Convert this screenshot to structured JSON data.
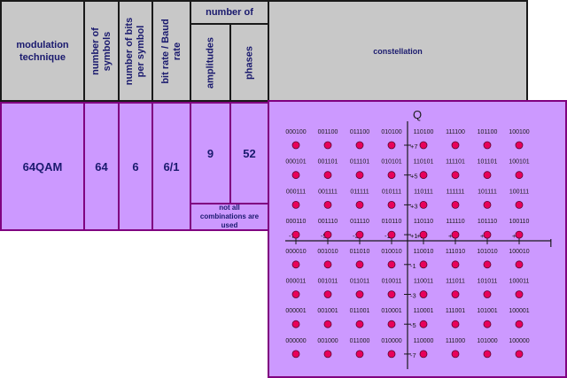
{
  "header": {
    "modulation_technique": "modulation technique",
    "number_of_symbols": "number of symbols",
    "number_of_bits_per_symbol": "number of bits per symbol",
    "bit_rate_baud_rate": "bit rate / Baud rate",
    "number_of": "number of",
    "amplitudes": "amplitudes",
    "phases": "phases",
    "constellation": "constellation"
  },
  "row": {
    "modulation_technique": "64QAM",
    "number_of_symbols": "64",
    "number_of_bits_per_symbol": "6",
    "bit_rate_baud_rate": "6/1",
    "amplitudes": "9",
    "phases": "52",
    "note": "not all combinations are used"
  },
  "constellation": {
    "axis_q_label": "Q",
    "axis_i_label": "I",
    "i_ticks": [
      "-7",
      "-5",
      "-3",
      "-1",
      "+1",
      "+3",
      "+5",
      "+7"
    ],
    "q_ticks": [
      "+7",
      "+5",
      "+3",
      "+1",
      "-1",
      "-3",
      "-5",
      "-7"
    ],
    "grid_rows": [
      [
        "000100",
        "001100",
        "011100",
        "010100",
        "110100",
        "111100",
        "101100",
        "100100"
      ],
      [
        "000101",
        "001101",
        "011101",
        "010101",
        "110101",
        "111101",
        "101101",
        "100101"
      ],
      [
        "000111",
        "001111",
        "011111",
        "010111",
        "110111",
        "111111",
        "101111",
        "100111"
      ],
      [
        "000110",
        "001110",
        "011110",
        "010110",
        "110110",
        "111110",
        "101110",
        "100110"
      ],
      [
        "000010",
        "001010",
        "011010",
        "010010",
        "110010",
        "111010",
        "101010",
        "100010"
      ],
      [
        "000011",
        "001011",
        "011011",
        "010011",
        "110011",
        "111011",
        "101011",
        "100011"
      ],
      [
        "000001",
        "001001",
        "011001",
        "010001",
        "110001",
        "111001",
        "101001",
        "100001"
      ],
      [
        "000000",
        "001000",
        "011000",
        "010000",
        "110000",
        "111000",
        "101000",
        "100000"
      ]
    ],
    "point_color": "#e8005a",
    "axis_color": "#1a1a1a"
  }
}
